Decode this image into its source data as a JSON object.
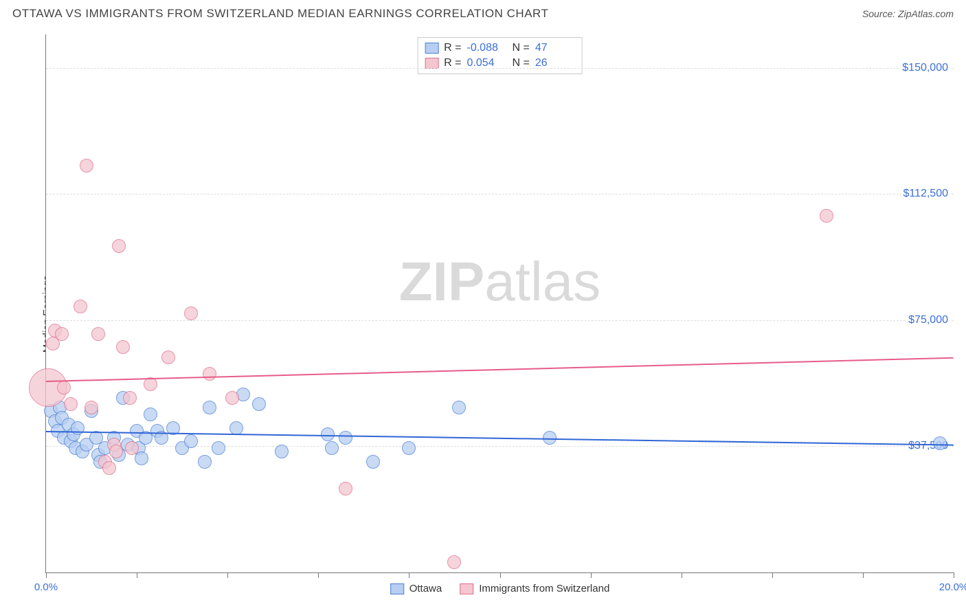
{
  "title": "OTTAWA VS IMMIGRANTS FROM SWITZERLAND MEDIAN EARNINGS CORRELATION CHART",
  "source": "Source: ZipAtlas.com",
  "ylabel": "Median Earnings",
  "watermark_bold": "ZIP",
  "watermark_rest": "atlas",
  "chart": {
    "type": "scatter",
    "background_color": "#ffffff",
    "grid_color": "#dddddd",
    "axis_color": "#777777",
    "label_color": "#3b6fd6",
    "xlim": [
      0,
      20
    ],
    "ylim": [
      0,
      160000
    ],
    "xticks": [
      0,
      2,
      4,
      6,
      8,
      10,
      12,
      14,
      16,
      18,
      20
    ],
    "xtick_labels": {
      "0": "0.0%",
      "20": "20.0%"
    },
    "yticks": [
      {
        "v": 37500,
        "label": "$37,500"
      },
      {
        "v": 75000,
        "label": "$75,000"
      },
      {
        "v": 112500,
        "label": "$112,500"
      },
      {
        "v": 150000,
        "label": "$150,000"
      }
    ],
    "series": [
      {
        "key": "ottawa",
        "label": "Ottawa",
        "fill": "#b7cef2",
        "stroke": "#4a7fd1",
        "line": "#2f66d6",
        "R_label": "R =",
        "R": "-0.088",
        "N_label": "N =",
        "N": "47",
        "trend": {
          "y_at_x0": 42000,
          "y_at_x20": 38000,
          "width": 2
        },
        "marker_r": 10,
        "points": [
          [
            0.1,
            48000
          ],
          [
            0.2,
            45000
          ],
          [
            0.25,
            42000
          ],
          [
            0.3,
            49000
          ],
          [
            0.35,
            46000
          ],
          [
            0.4,
            40000
          ],
          [
            0.5,
            44000
          ],
          [
            0.55,
            39000
          ],
          [
            0.6,
            41000
          ],
          [
            0.65,
            37000
          ],
          [
            0.7,
            43000
          ],
          [
            0.8,
            36000
          ],
          [
            0.9,
            38000
          ],
          [
            1.0,
            48000
          ],
          [
            1.1,
            40000
          ],
          [
            1.15,
            35000
          ],
          [
            1.2,
            33000
          ],
          [
            1.3,
            37000
          ],
          [
            1.5,
            40000
          ],
          [
            1.6,
            35000
          ],
          [
            1.7,
            52000
          ],
          [
            1.8,
            38000
          ],
          [
            2.0,
            42000
          ],
          [
            2.05,
            37000
          ],
          [
            2.1,
            34000
          ],
          [
            2.2,
            40000
          ],
          [
            2.3,
            47000
          ],
          [
            2.45,
            42000
          ],
          [
            2.55,
            40000
          ],
          [
            2.8,
            43000
          ],
          [
            3.0,
            37000
          ],
          [
            3.2,
            39000
          ],
          [
            3.5,
            33000
          ],
          [
            3.6,
            49000
          ],
          [
            3.8,
            37000
          ],
          [
            4.2,
            43000
          ],
          [
            4.35,
            53000
          ],
          [
            4.7,
            50000
          ],
          [
            5.2,
            36000
          ],
          [
            6.2,
            41000
          ],
          [
            6.3,
            37000
          ],
          [
            6.6,
            40000
          ],
          [
            7.2,
            33000
          ],
          [
            8.0,
            37000
          ],
          [
            9.1,
            49000
          ],
          [
            11.1,
            40000
          ],
          [
            19.7,
            38500
          ]
        ]
      },
      {
        "key": "swiss",
        "label": "Immigrants from Switzerland",
        "fill": "#f4c6d0",
        "stroke": "#e06f8d",
        "line": "#e65c89",
        "R_label": "R =",
        "R": "0.054",
        "N_label": "N =",
        "N": "26",
        "trend": {
          "y_at_x0": 57000,
          "y_at_x20": 64000,
          "width": 2
        },
        "marker_r": 10,
        "points": [
          [
            0.05,
            55000,
            28
          ],
          [
            0.15,
            68000,
            10
          ],
          [
            0.2,
            72000,
            10
          ],
          [
            0.35,
            71000,
            10
          ],
          [
            0.4,
            55000,
            10
          ],
          [
            0.55,
            50000,
            10
          ],
          [
            0.75,
            79000,
            10
          ],
          [
            0.9,
            121000,
            10
          ],
          [
            1.0,
            49000,
            10
          ],
          [
            1.15,
            71000,
            10
          ],
          [
            1.3,
            33000,
            10
          ],
          [
            1.4,
            31000,
            10
          ],
          [
            1.5,
            38000,
            10
          ],
          [
            1.55,
            36000,
            10
          ],
          [
            1.6,
            97000,
            10
          ],
          [
            1.7,
            67000,
            10
          ],
          [
            1.85,
            52000,
            10
          ],
          [
            1.9,
            37000,
            10
          ],
          [
            2.3,
            56000,
            10
          ],
          [
            2.7,
            64000,
            10
          ],
          [
            3.2,
            77000,
            10
          ],
          [
            3.6,
            59000,
            10
          ],
          [
            4.1,
            52000,
            10
          ],
          [
            6.6,
            25000,
            10
          ],
          [
            9.0,
            3000,
            10
          ],
          [
            17.2,
            106000,
            10
          ]
        ]
      }
    ]
  }
}
